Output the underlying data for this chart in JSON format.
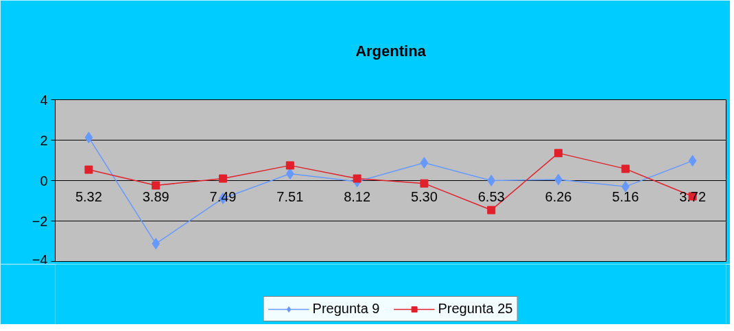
{
  "chart_data": {
    "type": "line",
    "title": "Argentina",
    "categories": [
      "5.32",
      "3.89",
      "7.49",
      "7.51",
      "8.12",
      "5.30",
      "6.53",
      "6.26",
      "5.16",
      "3.72"
    ],
    "series": [
      {
        "name": "Pregunta 9",
        "color": "#6699ff",
        "marker": "diamond",
        "values": [
          2.13,
          -3.12,
          -0.88,
          0.34,
          -0.05,
          0.88,
          0.0,
          0.05,
          -0.3,
          0.98
        ]
      },
      {
        "name": "Pregunta 25",
        "color": "#e0202a",
        "marker": "square",
        "values": [
          0.54,
          -0.24,
          0.1,
          0.75,
          0.1,
          -0.14,
          -1.46,
          1.36,
          0.58,
          -0.78
        ]
      }
    ],
    "ylim": [
      -4,
      4
    ],
    "yticks": [
      -4,
      -2,
      0,
      2,
      4
    ],
    "grid": "y",
    "legend": "bottom",
    "line_style": "solid"
  }
}
